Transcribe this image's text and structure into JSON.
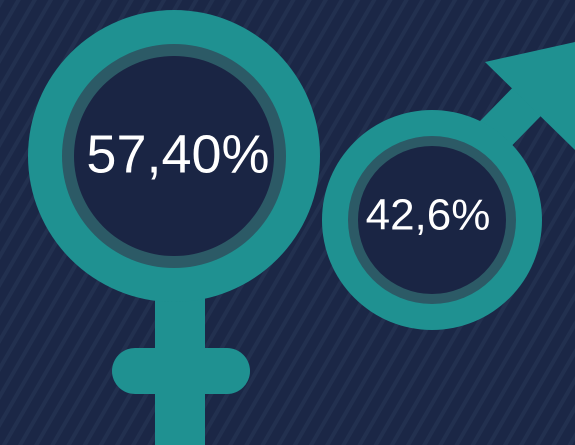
{
  "female": {
    "label": "57,40%"
  },
  "male": {
    "label": "42,6%"
  }
}
